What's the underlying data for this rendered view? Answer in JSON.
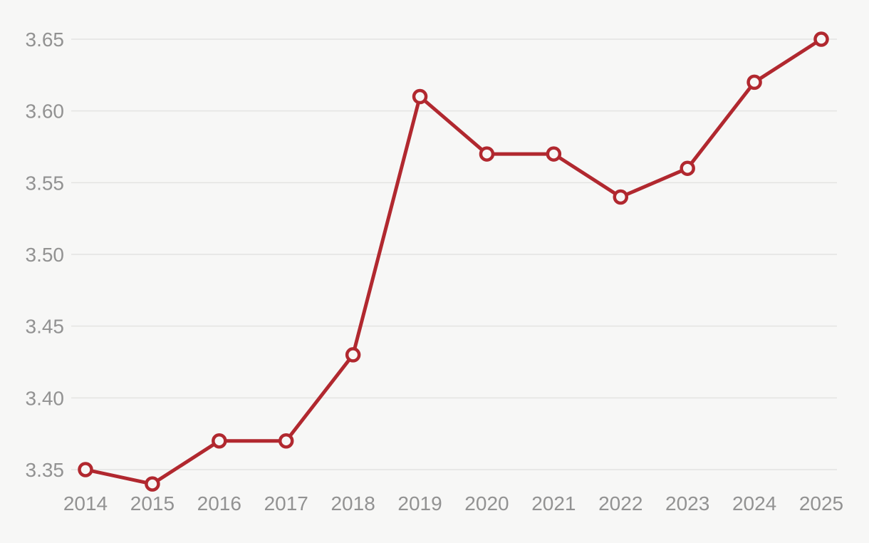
{
  "chart_data": {
    "type": "line",
    "title": "",
    "xlabel": "",
    "ylabel": "",
    "x": [
      "2014",
      "2015",
      "2016",
      "2017",
      "2018",
      "2019",
      "2020",
      "2021",
      "2022",
      "2023",
      "2024",
      "2025"
    ],
    "series": [
      {
        "name": "value",
        "values": [
          3.35,
          3.34,
          3.37,
          3.37,
          3.43,
          3.61,
          3.57,
          3.57,
          3.54,
          3.56,
          3.62,
          3.65
        ]
      }
    ],
    "y_ticks": [
      3.35,
      3.4,
      3.45,
      3.5,
      3.55,
      3.6,
      3.65
    ],
    "y_tick_labels": [
      "3.35",
      "3.40",
      "3.45",
      "3.50",
      "3.55",
      "3.60",
      "3.65"
    ],
    "ylim": [
      3.35,
      3.65
    ],
    "grid": "horizontal",
    "legend": false,
    "marker": "open-circle",
    "colors": {
      "background": "#f7f7f6",
      "line": "#b1282f",
      "marker_stroke": "#b1282f",
      "marker_fill": "#f7f7f6",
      "grid_line": "#e4e4e2",
      "tick_label": "#929292"
    }
  }
}
